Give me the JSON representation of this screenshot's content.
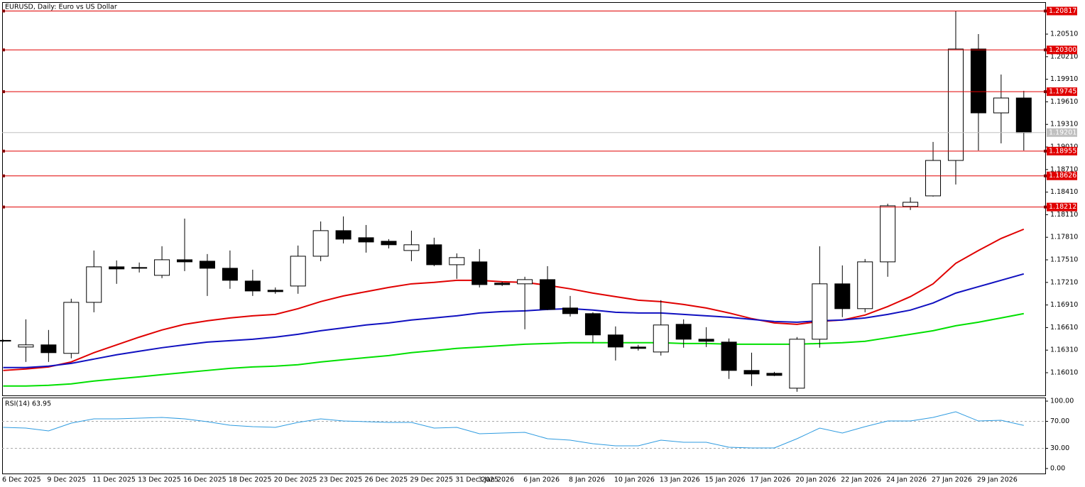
{
  "chart_data": [
    {
      "type": "candlestick",
      "title": "EURUSD, Daily:  Euro vs US Dollar",
      "categories": [
        "6 Dec 2025",
        null,
        "9 Dec 2025",
        null,
        "11 Dec 2025",
        null,
        "13 Dec 2025",
        null,
        "16 Dec 2025",
        null,
        "18 Dec 2025",
        null,
        "20 Dec 2025",
        null,
        "23 Dec 2025",
        null,
        "26 Dec 2025",
        null,
        "29 Dec 2025",
        null,
        "31 Dec 2025",
        "3 Jan 2026",
        null,
        "6 Jan 2026",
        null,
        "8 Jan 2026",
        null,
        "10 Jan 2026",
        null,
        "13 Jan 2026",
        null,
        "15 Jan 2026",
        null,
        "17 Jan 2026",
        null,
        "20 Jan 2026",
        null,
        "22 Jan 2026",
        null,
        "24 Jan 2026",
        null,
        "27 Jan 2026",
        null,
        "29 Jan 2026",
        null,
        null
      ],
      "open": [
        1.1644,
        1.16351,
        1.1638,
        1.16267,
        1.16945,
        1.17417,
        1.17408,
        1.17304,
        1.17511,
        1.17492,
        1.17398,
        1.17228,
        1.17106,
        1.17162,
        1.17558,
        1.17898,
        1.17804,
        1.17757,
        1.17634,
        1.1771,
        1.17445,
        1.17483,
        1.172,
        1.17191,
        1.17247,
        1.1687,
        1.16795,
        1.16512,
        1.16351,
        1.16285,
        1.16653,
        1.16455,
        1.16417,
        1.1604,
        1.16002,
        1.15804,
        1.16455,
        1.17191,
        1.16861,
        1.17483,
        1.18219,
        1.1836,
        1.18831,
        1.20312,
        1.19463,
        1.19661
      ],
      "high": [
        1.1645,
        1.16719,
        1.16578,
        1.16993,
        1.17634,
        1.17502,
        1.17474,
        1.17691,
        1.18058,
        1.17587,
        1.17634,
        1.17379,
        1.17143,
        1.177,
        1.1802,
        1.18087,
        1.17973,
        1.17785,
        1.17898,
        1.17804,
        1.17596,
        1.17653,
        1.17219,
        1.17285,
        1.17426,
        1.1703,
        1.16813,
        1.16625,
        1.1638,
        1.16974,
        1.16719,
        1.16615,
        1.16465,
        1.16276,
        1.16021,
        1.16484,
        1.17691,
        1.17436,
        1.17521,
        1.18256,
        1.18341,
        1.19077,
        1.20821,
        1.2051,
        1.19973,
        1.19756
      ],
      "low": [
        1.1642,
        1.16153,
        1.16153,
        1.16201,
        1.16813,
        1.17191,
        1.17342,
        1.17266,
        1.1736,
        1.1703,
        1.17125,
        1.1703,
        1.17059,
        1.17059,
        1.17492,
        1.17728,
        1.17606,
        1.17662,
        1.17492,
        1.17426,
        1.17257,
        1.17143,
        1.17162,
        1.16587,
        1.16842,
        1.16757,
        1.16408,
        1.16172,
        1.16304,
        1.16238,
        1.16342,
        1.16351,
        1.15927,
        1.15833,
        1.15965,
        1.15757,
        1.16342,
        1.16748,
        1.16813,
        1.17285,
        1.18172,
        1.18351,
        1.18511,
        1.18963,
        1.19058,
        1.18963
      ],
      "close": [
        1.1643,
        1.1638,
        1.16276,
        1.16945,
        1.17417,
        1.17389,
        1.17398,
        1.17511,
        1.17483,
        1.17398,
        1.17238,
        1.17096,
        1.17087,
        1.17558,
        1.17898,
        1.17785,
        1.17747,
        1.1771,
        1.1771,
        1.17445,
        1.1754,
        1.17181,
        1.17181,
        1.17247,
        1.16851,
        1.16795,
        1.16512,
        1.16351,
        1.16333,
        1.16644,
        1.16455,
        1.16427,
        1.1604,
        1.15993,
        1.15974,
        1.16455,
        1.17191,
        1.16861,
        1.17483,
        1.18228,
        1.18275,
        1.18831,
        1.20312,
        1.19463,
        1.19661,
        1.19201
      ],
      "up_color": "#ffffff",
      "down_color": "#000000",
      "series": [
        {
          "color": "#e00000",
          "values": [
            1.1604,
            1.16059,
            1.16087,
            1.16153,
            1.16276,
            1.1638,
            1.16483,
            1.16578,
            1.16653,
            1.167,
            1.16738,
            1.16766,
            1.16785,
            1.16861,
            1.16955,
            1.1703,
            1.17087,
            1.17143,
            1.17191,
            1.1721,
            1.17238,
            1.17238,
            1.17219,
            1.1721,
            1.17172,
            1.17125,
            1.17068,
            1.17021,
            1.16974,
            1.16955,
            1.16917,
            1.1687,
            1.16804,
            1.16729,
            1.16672,
            1.16653,
            1.16691,
            1.1671,
            1.16776,
            1.16889,
            1.17021,
            1.17191,
            1.17464,
            1.17634,
            1.17794,
            1.17917
          ]
        },
        {
          "color": "#1010c0",
          "values": [
            1.16078,
            1.16078,
            1.16097,
            1.16134,
            1.16191,
            1.16248,
            1.16295,
            1.16342,
            1.1638,
            1.16417,
            1.16436,
            1.16455,
            1.16483,
            1.16521,
            1.16568,
            1.16606,
            1.16644,
            1.16672,
            1.1671,
            1.16738,
            1.16766,
            1.16804,
            1.16823,
            1.16832,
            1.16851,
            1.16861,
            1.16842,
            1.16813,
            1.16804,
            1.16804,
            1.16785,
            1.16766,
            1.16747,
            1.16719,
            1.16691,
            1.16681,
            1.167,
            1.1671,
            1.16738,
            1.16785,
            1.16842,
            1.16936,
            1.17068,
            1.17153,
            1.17238,
            1.17323
          ]
        },
        {
          "color": "#00e000",
          "values": [
            1.15833,
            1.15833,
            1.15842,
            1.15861,
            1.15899,
            1.15927,
            1.15955,
            1.15984,
            1.16012,
            1.1604,
            1.16068,
            1.16087,
            1.16097,
            1.16116,
            1.16153,
            1.16182,
            1.1621,
            1.16238,
            1.16276,
            1.16304,
            1.16333,
            1.16351,
            1.1637,
            1.16389,
            1.16398,
            1.16408,
            1.16408,
            1.16408,
            1.16408,
            1.16408,
            1.16398,
            1.16398,
            1.16389,
            1.16389,
            1.16389,
            1.16389,
            1.16398,
            1.16408,
            1.16427,
            1.16474,
            1.16521,
            1.16568,
            1.16634,
            1.16681,
            1.16738,
            1.16795
          ]
        }
      ],
      "levels": [
        1.20817,
        {
          "value": 1.203,
          "label": "1.20300"
        },
        1.19745,
        1.18955,
        1.18626,
        1.18212
      ],
      "level_color": "#e00000",
      "current_price": 1.19201,
      "current_color": "#c0c0c0",
      "ylim": [
        1.15708,
        1.20935
      ],
      "yticks": [
        {
          "value": 1.2051,
          "label": "1.20510"
        },
        {
          "value": 1.2021,
          "label": "1.20210"
        },
        {
          "value": 1.1991,
          "label": "1.19910"
        },
        {
          "value": 1.1961,
          "label": "1.19610"
        },
        {
          "value": 1.1931,
          "label": "1.19310"
        },
        {
          "value": 1.1901,
          "label": "1.19010"
        },
        {
          "value": 1.1871,
          "label": "1.18710"
        },
        {
          "value": 1.1841,
          "label": "1.18410"
        },
        {
          "value": 1.1811,
          "label": "1.18110"
        },
        {
          "value": 1.1781,
          "label": "1.17810"
        },
        {
          "value": 1.1751,
          "label": "1.17510"
        },
        {
          "value": 1.1721,
          "label": "1.17210"
        },
        {
          "value": 1.1691,
          "label": "1.16910"
        },
        {
          "value": 1.1661,
          "label": "1.16610"
        },
        {
          "value": 1.1631,
          "label": "1.16310"
        },
        {
          "value": 1.1601,
          "label": "1.16010"
        }
      ]
    },
    {
      "type": "line",
      "title": "RSI(14) 63.95",
      "color": "#2e9be0",
      "values": [
        61.1,
        60.0,
        55.8,
        67.4,
        73.7,
        73.7,
        74.7,
        75.8,
        73.7,
        69.5,
        64.2,
        62.1,
        61.1,
        68.4,
        73.7,
        70.5,
        69.5,
        68.4,
        68.4,
        60.0,
        61.1,
        51.6,
        52.6,
        53.7,
        44.2,
        42.1,
        36.8,
        33.7,
        33.7,
        42.1,
        38.9,
        38.9,
        31.6,
        30.5,
        30.5,
        44.2,
        60.0,
        52.6,
        62.1,
        70.5,
        70.5,
        75.8,
        84.2,
        70.5,
        71.6,
        63.95
      ],
      "ylim": [
        -7.4,
        105.3
      ],
      "yticks": [
        {
          "value": 100,
          "label": "100.00"
        },
        {
          "value": 70,
          "label": "70.00"
        },
        {
          "value": 30,
          "label": "30.00"
        },
        {
          "value": 0,
          "label": "0.00"
        }
      ]
    }
  ]
}
